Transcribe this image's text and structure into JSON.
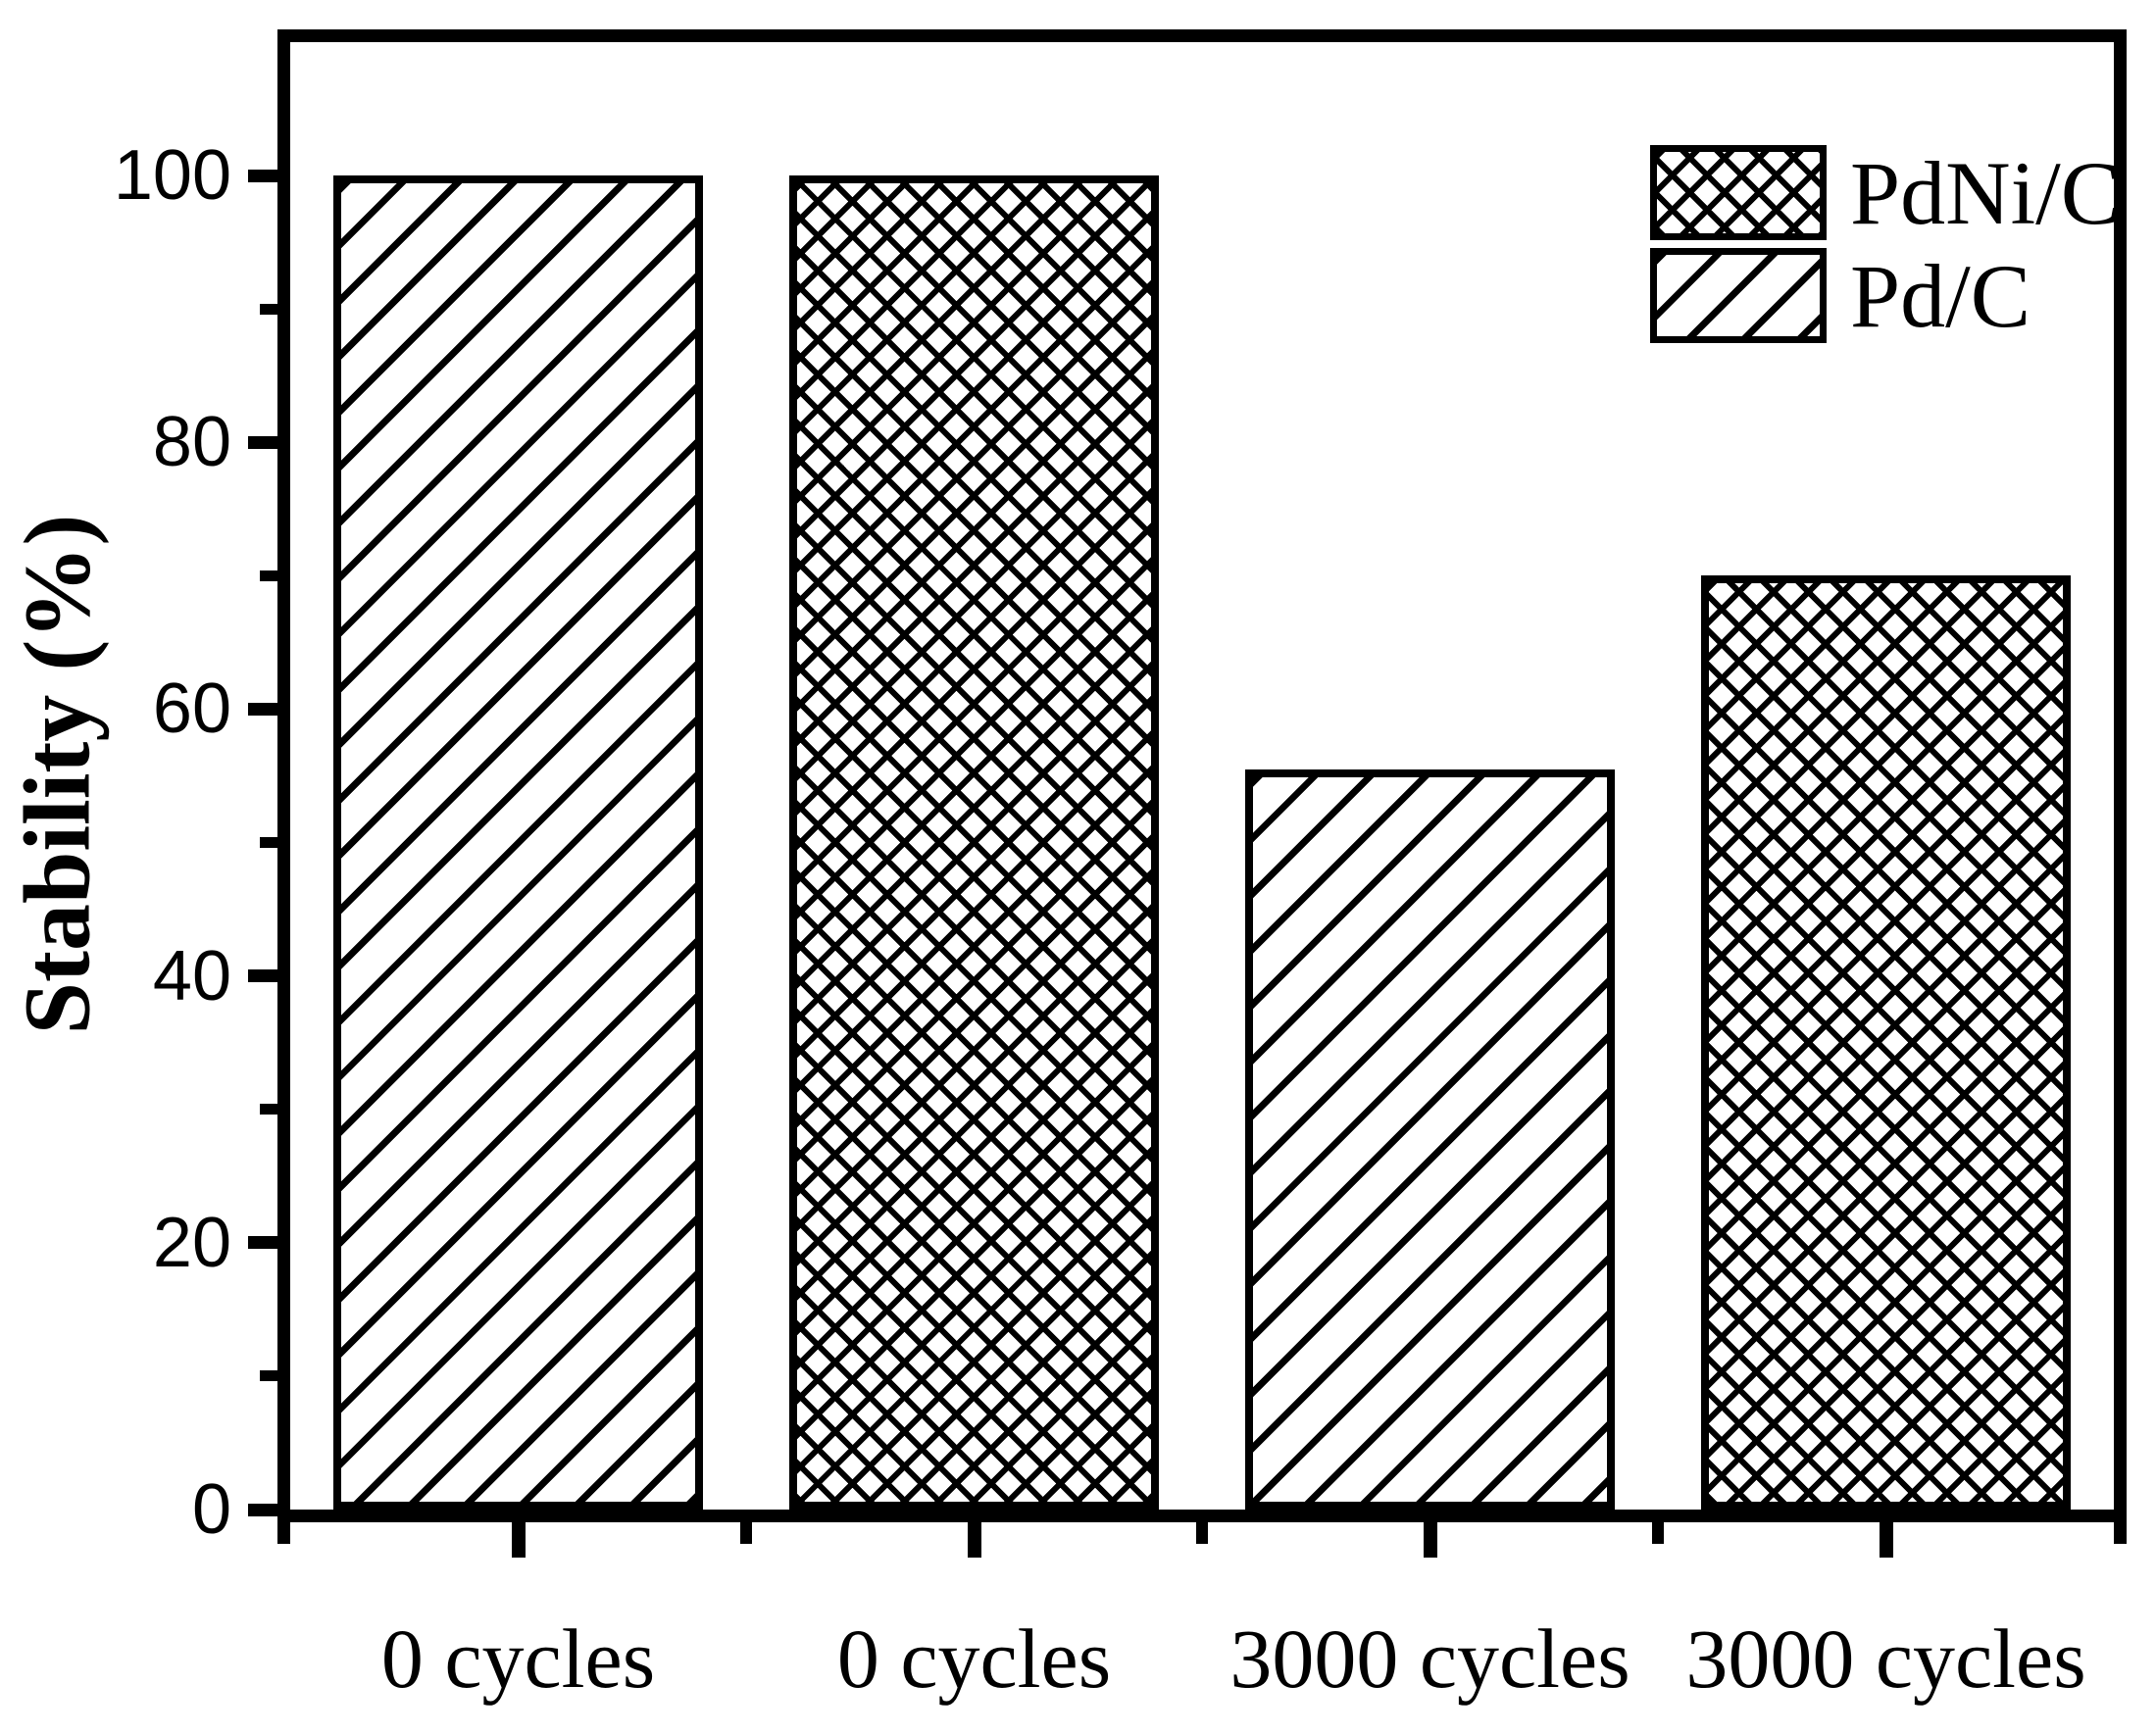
{
  "figure": {
    "background_color": "#ffffff",
    "foreground_color": "#000000"
  },
  "chart_data": {
    "type": "bar",
    "title": "",
    "xlabel": "",
    "ylabel": "Stability (%)",
    "categories": [
      "0 cycles",
      "0 cycles",
      "3000 cycles",
      "3000 cycles"
    ],
    "bars": [
      {
        "category": "0 cycles",
        "series": "Pd/C",
        "value": 100,
        "hatch": "diagonal"
      },
      {
        "category": "0 cycles",
        "series": "PdNi/C",
        "value": 100,
        "hatch": "crosshatch"
      },
      {
        "category": "3000 cycles",
        "series": "Pd/C",
        "value": 55.5,
        "hatch": "diagonal"
      },
      {
        "category": "3000 cycles",
        "series": "PdNi/C",
        "value": 70,
        "hatch": "crosshatch"
      }
    ],
    "ylim": [
      0,
      110
    ],
    "y_major_ticks": [
      0,
      20,
      40,
      60,
      80,
      100
    ],
    "y_major_tick_labels": [
      "0",
      "20",
      "40",
      "60",
      "80",
      "100"
    ],
    "y_minor_ticks": [
      10,
      30,
      50,
      70,
      90
    ],
    "grid": false,
    "legend": {
      "position": "top-right-inside",
      "entries": [
        {
          "label": "PdNi/C",
          "hatch": "crosshatch"
        },
        {
          "label": "Pd/C",
          "hatch": "diagonal"
        }
      ]
    }
  }
}
